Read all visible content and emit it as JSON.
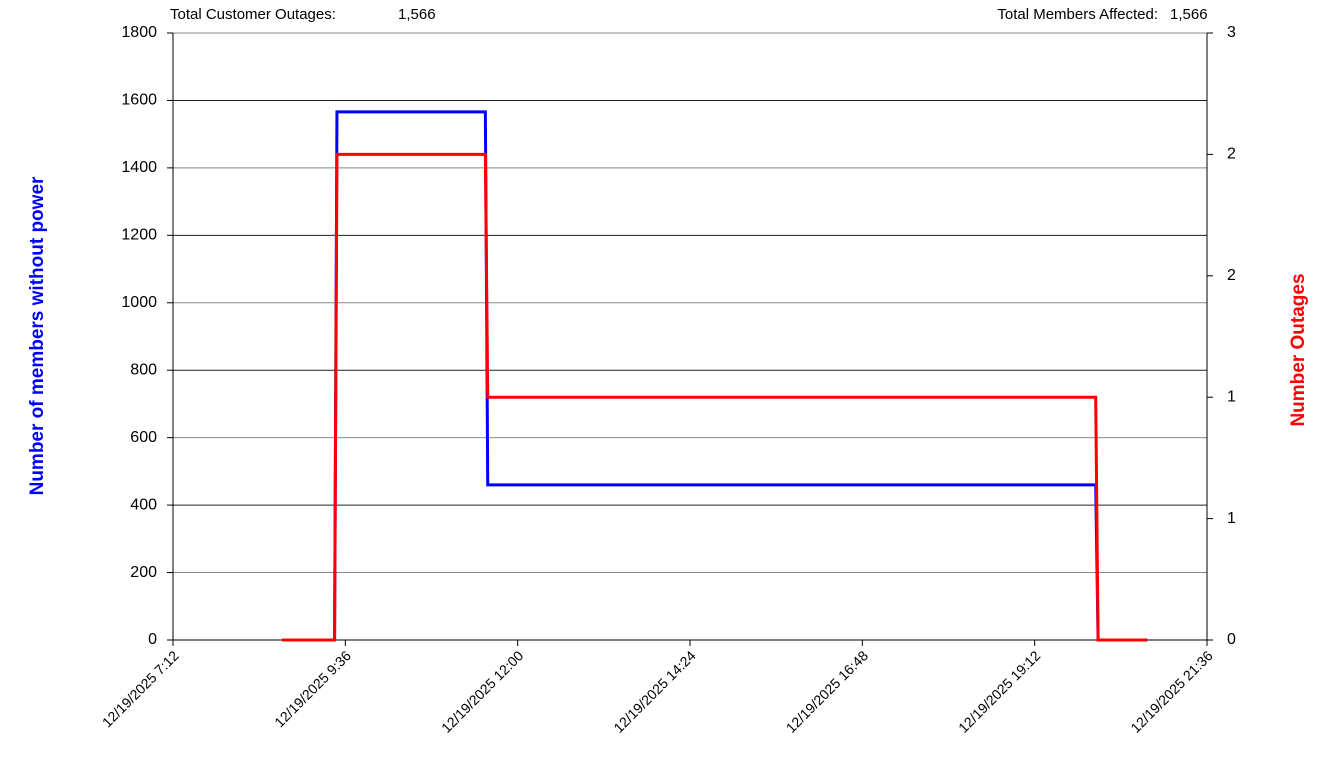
{
  "chart_data": {
    "type": "line",
    "annotations": [
      {
        "label": "Total Customer Outages:",
        "value": "1,566"
      },
      {
        "label": "Total Members Affected:",
        "value": "1,566"
      }
    ],
    "ylabel": "Number of members without power",
    "y2label": "Number Outages",
    "x": [
      "2025-12-19T08:43",
      "2025-12-19T09:27",
      "2025-12-19T09:29",
      "2025-12-19T11:33",
      "2025-12-19T11:35",
      "2025-12-19T20:03",
      "2025-12-19T20:05",
      "2025-12-19T20:46"
    ],
    "series": [
      {
        "name": "Members without power",
        "color": "#0000ff",
        "values": [
          0,
          0,
          1566,
          1566,
          460,
          460,
          0,
          0
        ]
      },
      {
        "name": "Number Outages",
        "color": "#ff0000",
        "axis": "y2",
        "values": [
          0,
          0,
          2.4,
          2.4,
          1.2,
          1.2,
          0,
          0
        ]
      }
    ],
    "xlim": [
      "2025-12-19T07:12",
      "2025-12-19T21:36"
    ],
    "xticks": [
      {
        "value": "2025-12-19T07:12",
        "label": "12/19/2025 7:12"
      },
      {
        "value": "2025-12-19T09:36",
        "label": "12/19/2025 9:36"
      },
      {
        "value": "2025-12-19T12:00",
        "label": "12/19/2025 12:00"
      },
      {
        "value": "2025-12-19T14:24",
        "label": "12/19/2025 14:24"
      },
      {
        "value": "2025-12-19T16:48",
        "label": "12/19/2025 16:48"
      },
      {
        "value": "2025-12-19T19:12",
        "label": "12/19/2025 19:12"
      },
      {
        "value": "2025-12-19T21:36",
        "label": "12/19/2025 21:36"
      }
    ],
    "ylim": [
      0,
      1800
    ],
    "yticks": [
      0,
      200,
      400,
      600,
      800,
      1000,
      1200,
      1400,
      1600,
      1800
    ],
    "y2lim": [
      0,
      3
    ],
    "y2ticks": [
      0,
      {
        "value": 0.6,
        "label": "1"
      },
      {
        "value": 1.2,
        "label": "1"
      },
      {
        "value": 1.8,
        "label": "2"
      },
      {
        "value": 2.4,
        "label": "2"
      },
      3
    ],
    "grid": true
  }
}
